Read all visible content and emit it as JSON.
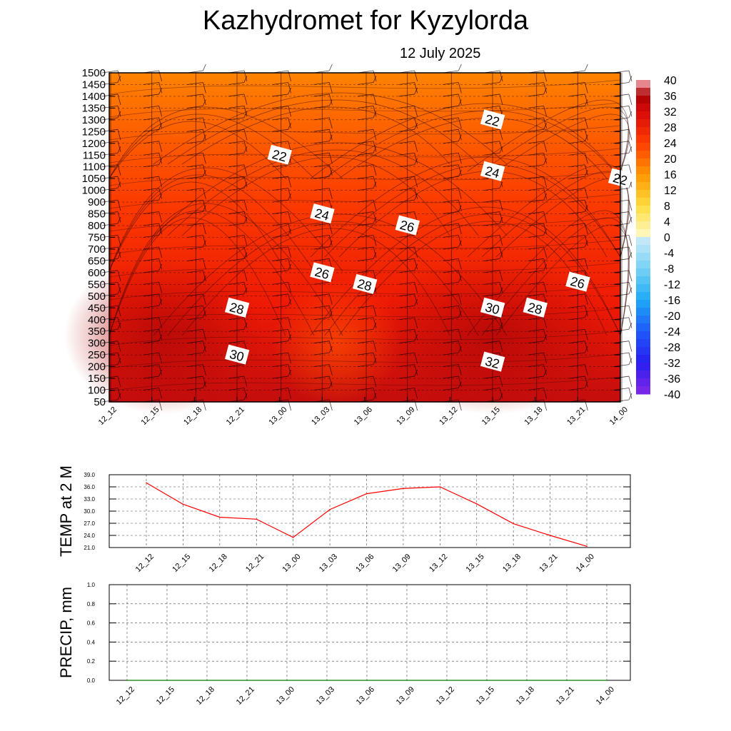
{
  "header": {
    "title": "Kazhydromet  for Kyzylorda",
    "date": "12 July 2025"
  },
  "chart_data": [
    {
      "type": "heatmap",
      "title": "Kazhydromet  for Kyzylorda",
      "subtitle": "12 July 2025",
      "x_categories": [
        "12_12",
        "12_15",
        "12_18",
        "12_21",
        "13_00",
        "13_03",
        "13_06",
        "13_09",
        "13_12",
        "13_15",
        "13_18",
        "13_21",
        "14_00"
      ],
      "y_ticks": [
        50,
        100,
        150,
        200,
        250,
        300,
        350,
        400,
        450,
        500,
        550,
        600,
        650,
        700,
        750,
        800,
        850,
        900,
        1000,
        1050,
        1100,
        1150,
        1200,
        1250,
        1300,
        1350,
        1400,
        1450,
        1500
      ],
      "colorbar_ticks": [
        40,
        36,
        32,
        28,
        24,
        20,
        16,
        12,
        8,
        4,
        0,
        -4,
        -8,
        -12,
        -16,
        -20,
        -24,
        -28,
        -32,
        -36,
        -40
      ],
      "colorbar_range": [
        -40,
        40
      ],
      "contour_labels": [
        {
          "label": "22",
          "x": "13_00",
          "y": 1150
        },
        {
          "label": "24",
          "x": "13_03",
          "y": 850
        },
        {
          "label": "26",
          "x": "13_03",
          "y": 600
        },
        {
          "label": "28",
          "x": "12_21",
          "y": 450
        },
        {
          "label": "30",
          "x": "12_21",
          "y": 250
        },
        {
          "label": "26",
          "x": "13_09",
          "y": 800
        },
        {
          "label": "28",
          "x": "13_06",
          "y": 550
        },
        {
          "label": "22",
          "x": "13_15",
          "y": 1300
        },
        {
          "label": "24",
          "x": "13_15",
          "y": 1080
        },
        {
          "label": "30",
          "x": "13_15",
          "y": 450
        },
        {
          "label": "32",
          "x": "13_15",
          "y": 220
        },
        {
          "label": "28",
          "x": "13_18",
          "y": 450
        },
        {
          "label": "26",
          "x": "13_21",
          "y": 560
        },
        {
          "label": "22",
          "x": "14_00",
          "y": 1050
        }
      ],
      "colors": {
        "high": "#b80808",
        "mid": "#ff2000",
        "low": "#ff8000"
      }
    },
    {
      "type": "line",
      "ylabel": "TEMP at 2 M",
      "categories": [
        "12_12",
        "12_15",
        "12_18",
        "12_21",
        "13_00",
        "13_03",
        "13_06",
        "13_09",
        "13_12",
        "13_15",
        "13_18",
        "13_21",
        "14_00"
      ],
      "values": [
        37.0,
        31.7,
        28.5,
        28.0,
        23.5,
        30.4,
        34.3,
        35.6,
        36.0,
        31.8,
        26.9,
        24.0,
        21.3
      ],
      "ylim": [
        21.0,
        39.0
      ],
      "y_ticks": [
        "21.0",
        "24.0",
        "27.0",
        "30.0",
        "33.0",
        "36.0",
        "39.0"
      ],
      "grid": true,
      "color": "#ff0000"
    },
    {
      "type": "line",
      "ylabel": "PRECIP, mm",
      "categories": [
        "12_12",
        "12_15",
        "12_18",
        "12_21",
        "13_00",
        "13_03",
        "13_06",
        "13_09",
        "13_12",
        "13_15",
        "13_18",
        "13_21",
        "14_00"
      ],
      "values": [
        0,
        0,
        0,
        0,
        0,
        0,
        0,
        0,
        0,
        0,
        0,
        0,
        0
      ],
      "ylim": [
        0.0,
        1.0
      ],
      "y_ticks": [
        "0.0",
        "0.2",
        "0.4",
        "0.6",
        "0.8",
        "1.0"
      ],
      "grid": true,
      "color": "#008000"
    }
  ]
}
